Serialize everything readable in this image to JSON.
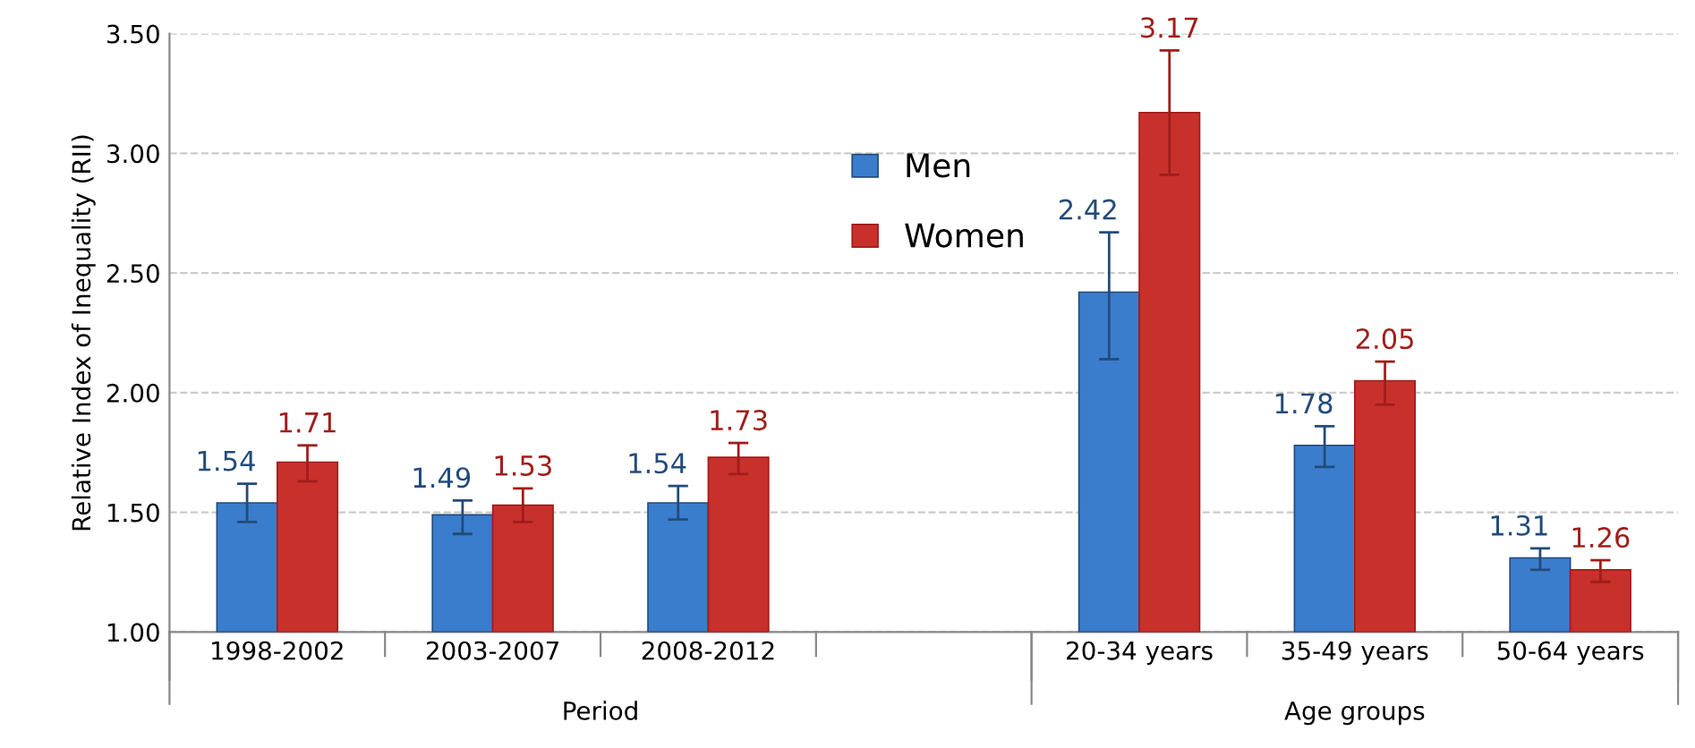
{
  "chart_data": {
    "type": "bar",
    "ylabel": "Relative Index of Inequality (RII)",
    "categories": [
      "1998-2002",
      "2003-2007",
      "2008-2012",
      null,
      "20-34 years",
      "35-49 years",
      "50-64 years"
    ],
    "series": [
      {
        "name": "Men",
        "color": "#3a7dcc",
        "values": [
          1.54,
          1.49,
          1.54,
          null,
          2.42,
          1.78,
          1.31
        ],
        "errors": [
          [
            1.46,
            1.62
          ],
          [
            1.41,
            1.55
          ],
          [
            1.47,
            1.61
          ],
          null,
          [
            2.14,
            2.67
          ],
          [
            1.69,
            1.86
          ],
          [
            1.26,
            1.35
          ]
        ]
      },
      {
        "name": "Women",
        "color": "#c8302c",
        "values": [
          1.71,
          1.53,
          1.73,
          null,
          3.17,
          2.05,
          1.26
        ],
        "errors": [
          [
            1.63,
            1.78
          ],
          [
            1.46,
            1.6
          ],
          [
            1.66,
            1.79
          ],
          null,
          [
            2.91,
            3.43
          ],
          [
            1.95,
            2.13
          ],
          [
            1.21,
            1.3
          ]
        ]
      }
    ],
    "ylim": [
      1.0,
      3.5
    ],
    "yticks": [
      {
        "value": 1,
        "label": "1.00"
      },
      {
        "value": 1.5,
        "label": "1.50"
      },
      {
        "value": 2,
        "label": "2.00"
      },
      {
        "value": 2.5,
        "label": "2.50"
      },
      {
        "value": 3,
        "label": "3.00"
      },
      {
        "value": 3.5,
        "label": "3.50"
      }
    ],
    "annotations": [
      "Period",
      "Age groups"
    ],
    "data_labels": true,
    "grid": "y",
    "legend": "top"
  }
}
